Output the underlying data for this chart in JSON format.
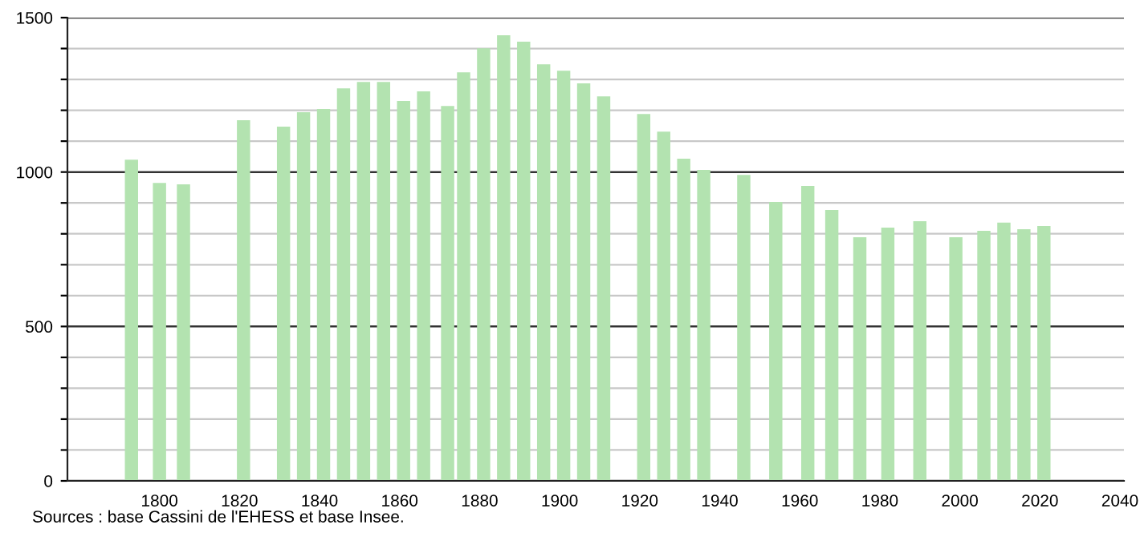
{
  "chart_data": {
    "type": "bar",
    "annotations": [
      "Sources : base Cassini de l'EHESS et base Insee."
    ],
    "x": [
      1793,
      1800,
      1806,
      1821,
      1831,
      1836,
      1841,
      1846,
      1851,
      1856,
      1861,
      1866,
      1872,
      1876,
      1881,
      1886,
      1891,
      1896,
      1901,
      1906,
      1911,
      1921,
      1926,
      1931,
      1936,
      1946,
      1954,
      1962,
      1968,
      1975,
      1982,
      1990,
      1999,
      2006,
      2011,
      2016,
      2021
    ],
    "series": [
      {
        "color": "#b3e3b0",
        "values": [
          1040,
          965,
          960,
          1168,
          1147,
          1194,
          1204,
          1271,
          1292,
          1292,
          1230,
          1261,
          1214,
          1323,
          1401,
          1443,
          1422,
          1349,
          1328,
          1287,
          1245,
          1188,
          1131,
          1043,
          1007,
          991,
          903,
          955,
          877,
          789,
          820,
          841,
          789,
          810,
          836,
          815,
          825
        ]
      }
    ],
    "xlim": [
      1777,
      2041
    ],
    "xticks": [
      1800,
      1820,
      1840,
      1860,
      1880,
      1900,
      1920,
      1940,
      1960,
      1980,
      2000,
      2020,
      2040
    ],
    "ylim": [
      0,
      1500
    ],
    "yticks": [
      0,
      {
        "value": 100,
        "label": null
      },
      {
        "value": 200,
        "label": null
      },
      {
        "value": 300,
        "label": null
      },
      {
        "value": 400,
        "label": null
      },
      500,
      {
        "value": 600,
        "label": null
      },
      {
        "value": 700,
        "label": null
      },
      {
        "value": 800,
        "label": null
      },
      {
        "value": 900,
        "label": null
      },
      1000,
      {
        "value": 1100,
        "label": null
      },
      {
        "value": 1200,
        "label": null
      },
      {
        "value": 1300,
        "label": null
      },
      {
        "value": 1400,
        "label": null
      },
      1500
    ],
    "grid": "y",
    "legend": false
  }
}
